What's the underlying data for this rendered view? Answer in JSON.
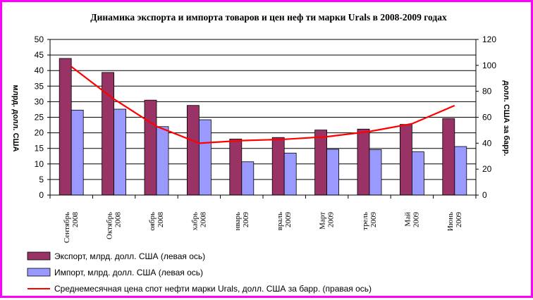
{
  "chart_data": {
    "type": "bar",
    "title": "Динамика экспорта и импорта товаров и цен неф ти марки Urals в 2008-2009 годах",
    "categories": [
      "Сентябрь 2008",
      "Октябрь 2008",
      "оябрь 2008",
      "хабрь 2008",
      "нварь 2009",
      "враль 2009",
      "Март 2009",
      "трель 2009",
      "Май 2009",
      "Июнь 2009"
    ],
    "series": [
      {
        "name": "Экспорт, млрд. долл. США (левая ось)",
        "type": "bar",
        "axis": "left",
        "color": "#993366",
        "values": [
          43.9,
          39.4,
          30.5,
          28.8,
          18.0,
          18.5,
          20.9,
          21.2,
          22.7,
          24.6
        ]
      },
      {
        "name": "Импорт, млрд. долл. США (левая ось)",
        "type": "bar",
        "axis": "left",
        "color": "#9999ff",
        "values": [
          27.3,
          27.6,
          22.0,
          24.2,
          10.7,
          13.5,
          14.7,
          14.6,
          13.9,
          15.6
        ]
      },
      {
        "name": "Среднемесячная цена спот нефти марки Urals, долл. США за барр. (правая ось)",
        "type": "line",
        "axis": "right",
        "color": "#ff0000",
        "values": [
          99,
          74,
          53,
          40,
          42,
          43,
          45,
          49,
          55,
          69
        ]
      }
    ],
    "ylim_left": [
      0,
      50
    ],
    "yticks_left": [
      0,
      5,
      10,
      15,
      20,
      25,
      30,
      35,
      40,
      45,
      50
    ],
    "ylim_right": [
      0,
      120
    ],
    "yticks_right": [
      0,
      20,
      40,
      60,
      80,
      100,
      120
    ],
    "ylabel_left": "млрд. долл. США",
    "ylabel_right": "долл. США за барр.",
    "grid": true,
    "legend_position": "bottom"
  },
  "legend": [
    {
      "label": "Экспорт, млрд. долл. США (левая ось)",
      "kind": "box",
      "color": "#993366"
    },
    {
      "label": "Импорт, млрд. долл. США (левая ось)",
      "kind": "box",
      "color": "#9999ff"
    },
    {
      "label": "Среднемесячная цена спот нефти марки Urals, долл. США за барр. (правая ось)",
      "kind": "line",
      "color": "#ff0000"
    }
  ],
  "colors": {
    "frame": "#ff00ff",
    "export": "#993366",
    "import": "#9999ff",
    "price": "#ff0000"
  }
}
